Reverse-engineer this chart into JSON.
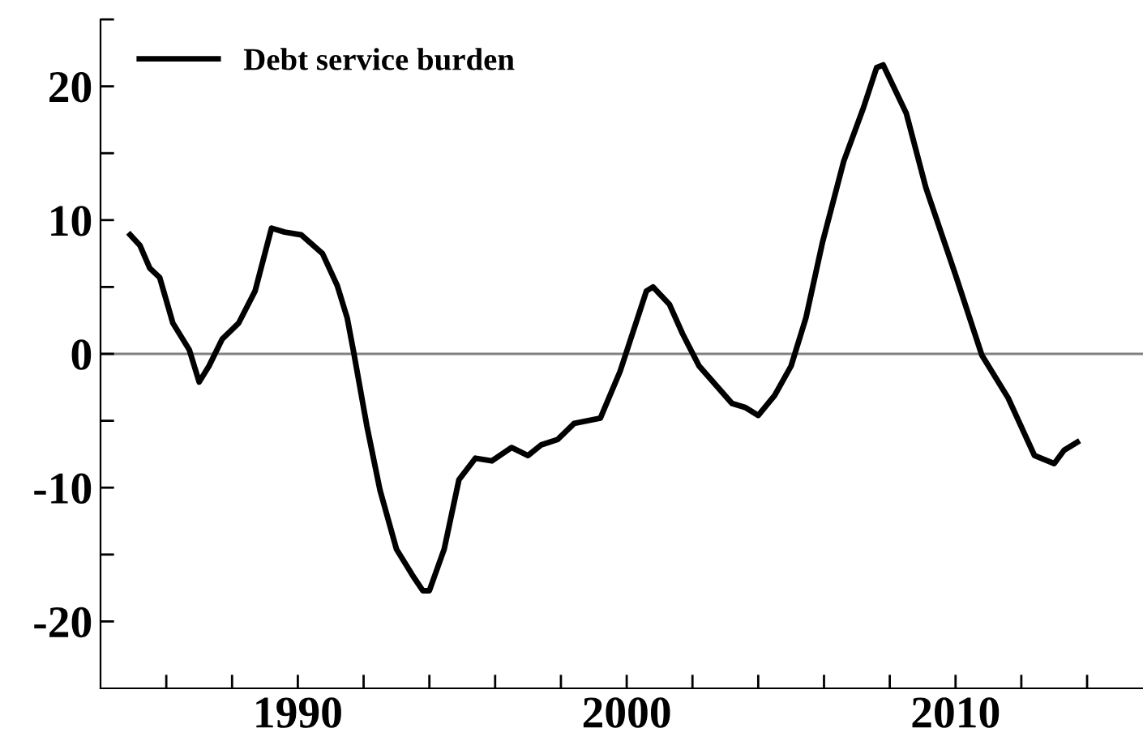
{
  "chart_data": {
    "type": "line",
    "legend": "top left",
    "grid": false,
    "line_style": "solid",
    "marker": "none",
    "xlim": [
      1984,
      2015.7
    ],
    "ylim": [
      -25,
      25
    ],
    "xticks": [
      {
        "value": 1986,
        "label": null
      },
      {
        "value": 1988,
        "label": null
      },
      1990,
      {
        "value": 1992,
        "label": null
      },
      {
        "value": 1994,
        "label": null
      },
      {
        "value": 1996,
        "label": null
      },
      {
        "value": 1998,
        "label": null
      },
      2000,
      {
        "value": 2002,
        "label": null
      },
      {
        "value": 2004,
        "label": null
      },
      {
        "value": 2006,
        "label": null
      },
      {
        "value": 2008,
        "label": null
      },
      2010,
      {
        "value": 2012,
        "label": null
      },
      {
        "value": 2014,
        "label": null
      }
    ],
    "yticks": [
      -20,
      {
        "value": -15,
        "label": null
      },
      -10,
      {
        "value": -5,
        "label": null
      },
      0,
      {
        "value": 5,
        "label": null
      },
      10,
      {
        "value": 15,
        "label": null
      },
      20,
      {
        "value": 25,
        "label": null
      }
    ],
    "ref_lines": [
      {
        "axis": "y",
        "value": 0,
        "color": "#808080"
      }
    ],
    "series": [
      {
        "name": "Debt service burden",
        "color": "#000000",
        "x": [
          1984.9,
          1985.2,
          1985.5,
          1985.8,
          1986.2,
          1986.7,
          1987.0,
          1987.3,
          1987.7,
          1988.2,
          1988.7,
          1989.2,
          1989.6,
          1990.1,
          1990.75,
          1991.2,
          1991.5,
          1991.7,
          1992.1,
          1992.5,
          1993.0,
          1993.5,
          1993.8,
          1994.0,
          1994.45,
          1994.9,
          1995.4,
          1995.9,
          1996.5,
          1997.0,
          1997.4,
          1997.9,
          1998.4,
          1999.2,
          1999.8,
          2000.6,
          2000.8,
          2001.3,
          2001.7,
          2002.2,
          2003.2,
          2003.6,
          2004.0,
          2004.5,
          2005.0,
          2005.45,
          2005.95,
          2006.6,
          2007.2,
          2007.6,
          2007.8,
          2008.5,
          2009.1,
          2010.0,
          2010.8,
          2011.6,
          2012.4,
          2013.0,
          2013.3,
          2013.7
        ],
        "values": [
          8.9,
          8.1,
          6.4,
          5.7,
          2.3,
          0.3,
          -2.1,
          -0.9,
          1.1,
          2.3,
          4.7,
          9.4,
          9.1,
          8.9,
          7.5,
          5.1,
          2.7,
          0.1,
          -5.4,
          -10.2,
          -14.6,
          -16.6,
          -17.7,
          -17.7,
          -14.6,
          -9.4,
          -7.8,
          -8.0,
          -7.0,
          -7.6,
          -6.8,
          -6.4,
          -5.2,
          -4.8,
          -1.3,
          4.7,
          5.0,
          3.7,
          1.5,
          -0.9,
          -3.7,
          -4.0,
          -4.6,
          -3.1,
          -0.9,
          2.7,
          8.3,
          14.4,
          18.4,
          21.4,
          21.6,
          18.0,
          12.4,
          5.9,
          -0.1,
          -3.3,
          -7.6,
          -8.2,
          -7.2,
          -6.6
        ]
      }
    ]
  }
}
